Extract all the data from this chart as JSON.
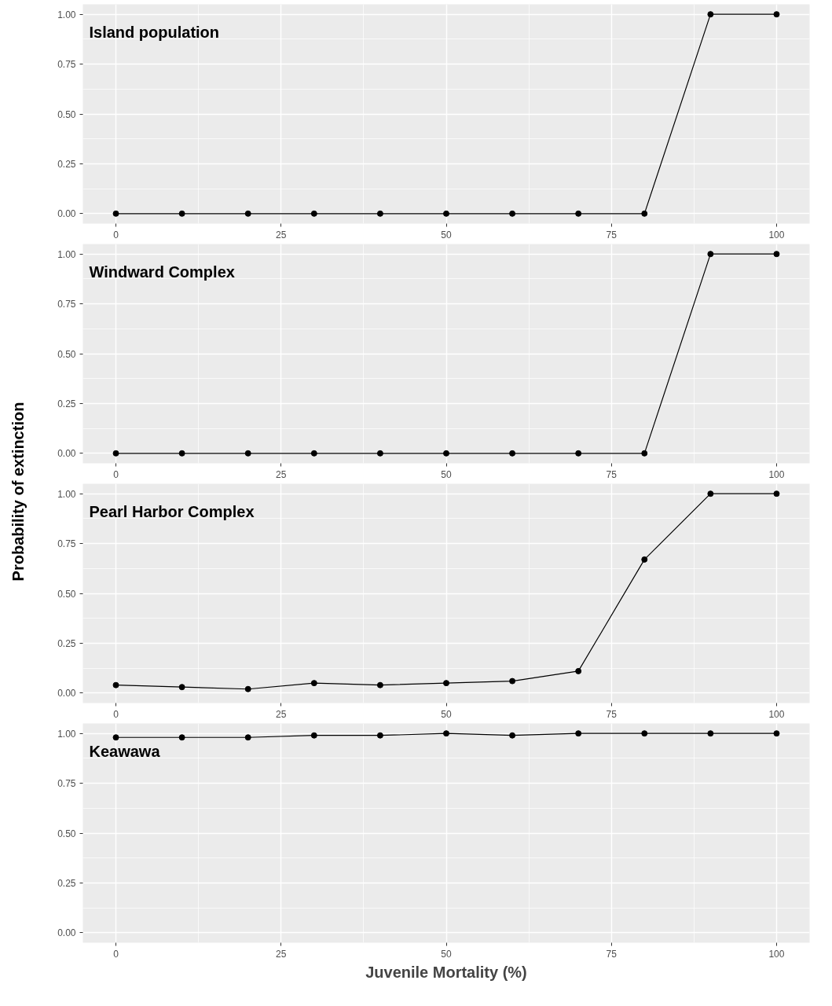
{
  "chart_data": [
    {
      "type": "line",
      "title": "Island population",
      "annotations": [
        "Probability of extinction"
      ],
      "x": [
        0,
        10,
        20,
        30,
        40,
        50,
        60,
        70,
        80,
        90,
        100
      ],
      "xlim": [
        -5,
        105
      ],
      "ylim": [
        -0.05,
        1.05
      ],
      "xticks": [
        0,
        25,
        50,
        75,
        100
      ],
      "yticks": [
        {
          "value": 0,
          "label": "0.00"
        },
        {
          "value": 0.25,
          "label": "0.25"
        },
        {
          "value": 0.5,
          "label": "0.50"
        },
        {
          "value": 0.75,
          "label": "0.75"
        },
        {
          "value": 1,
          "label": "1.00"
        }
      ],
      "grid": true,
      "marker": "circle",
      "line_style": "solid",
      "series": [
        {
          "color": "#000000",
          "values": [
            0,
            0,
            0,
            0,
            0,
            0,
            0,
            0,
            0,
            1,
            1
          ]
        }
      ]
    },
    {
      "type": "line",
      "title": "Windward Complex",
      "x": [
        0,
        10,
        20,
        30,
        40,
        50,
        60,
        70,
        80,
        90,
        100
      ],
      "xlim": [
        -5,
        105
      ],
      "ylim": [
        -0.05,
        1.05
      ],
      "xticks": [
        0,
        25,
        50,
        75,
        100
      ],
      "yticks": [
        {
          "value": 0,
          "label": "0.00"
        },
        {
          "value": 0.25,
          "label": "0.25"
        },
        {
          "value": 0.5,
          "label": "0.50"
        },
        {
          "value": 0.75,
          "label": "0.75"
        },
        {
          "value": 1,
          "label": "1.00"
        }
      ],
      "grid": true,
      "marker": "circle",
      "line_style": "solid",
      "series": [
        {
          "color": "#000000",
          "values": [
            0,
            0,
            0,
            0,
            0,
            0,
            0,
            0,
            0,
            1,
            1
          ]
        }
      ]
    },
    {
      "type": "line",
      "title": "Pearl Harbor Complex",
      "x": [
        0,
        10,
        20,
        30,
        40,
        50,
        60,
        70,
        80,
        90,
        100
      ],
      "xlim": [
        -5,
        105
      ],
      "ylim": [
        -0.05,
        1.05
      ],
      "xticks": [
        0,
        25,
        50,
        75,
        100
      ],
      "yticks": [
        {
          "value": 0,
          "label": "0.00"
        },
        {
          "value": 0.25,
          "label": "0.25"
        },
        {
          "value": 0.5,
          "label": "0.50"
        },
        {
          "value": 0.75,
          "label": "0.75"
        },
        {
          "value": 1,
          "label": "1.00"
        }
      ],
      "grid": true,
      "marker": "circle",
      "line_style": "solid",
      "series": [
        {
          "color": "#000000",
          "values": [
            0.04,
            0.03,
            0.02,
            0.05,
            0.04,
            0.05,
            0.06,
            0.11,
            0.67,
            1,
            1
          ]
        }
      ]
    },
    {
      "type": "line",
      "title": "Keawawa",
      "xlabel": "Juvenile Mortality (%)",
      "x": [
        0,
        10,
        20,
        30,
        40,
        50,
        60,
        70,
        80,
        90,
        100
      ],
      "xlim": [
        -5,
        105
      ],
      "ylim": [
        -0.05,
        1.05
      ],
      "xticks": [
        0,
        25,
        50,
        75,
        100
      ],
      "yticks": [
        {
          "value": 0,
          "label": "0.00"
        },
        {
          "value": 0.25,
          "label": "0.25"
        },
        {
          "value": 0.5,
          "label": "0.50"
        },
        {
          "value": 0.75,
          "label": "0.75"
        },
        {
          "value": 1,
          "label": "1.00"
        }
      ],
      "grid": true,
      "marker": "circle",
      "line_style": "solid",
      "series": [
        {
          "color": "#000000",
          "values": [
            0.98,
            0.98,
            0.98,
            0.99,
            0.99,
            1,
            0.99,
            1,
            1,
            1,
            1
          ]
        }
      ]
    }
  ]
}
